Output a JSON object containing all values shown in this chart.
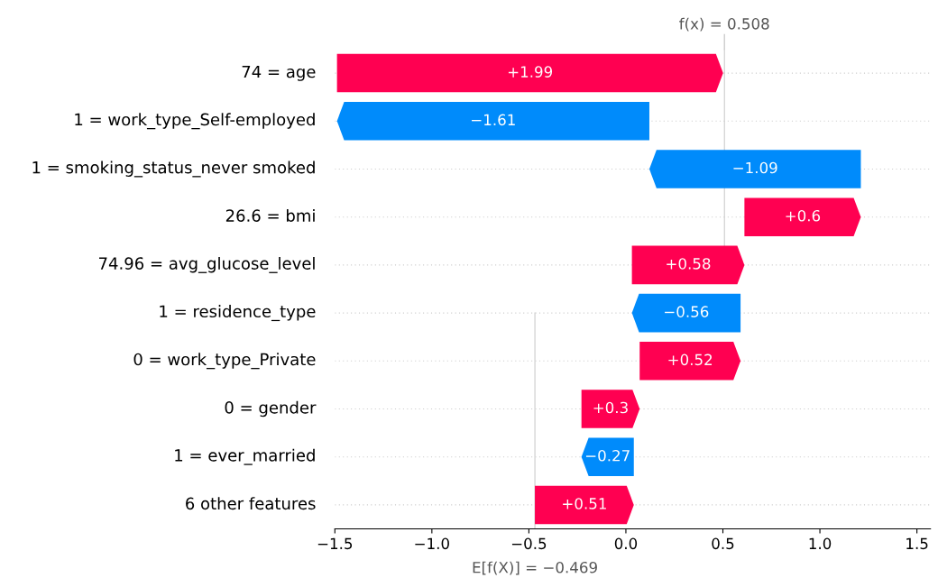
{
  "chart_data": {
    "type": "bar",
    "orientation": "horizontal",
    "categories": [
      "74 = age",
      "1 = work_type_Self-employed",
      "1 = smoking_status_never smoked",
      "26.6 = bmi",
      "74.96 = avg_glucose_level",
      "1 = residence_type",
      "0 = work_type_Private",
      "0 = gender",
      "1 = ever_married",
      "6 other features"
    ],
    "values": [
      1.99,
      -1.61,
      -1.09,
      0.6,
      0.58,
      -0.56,
      0.52,
      0.3,
      -0.27,
      0.51
    ],
    "base": [
      -1.489,
      0.121,
      1.211,
      0.611,
      0.031,
      0.591,
      0.071,
      -0.229,
      0.041,
      -0.469
    ],
    "colors": [
      "#ff0051",
      "#008bfb",
      "#008bfb",
      "#ff0051",
      "#ff0051",
      "#008bfb",
      "#ff0051",
      "#ff0051",
      "#008bfb",
      "#ff0051"
    ],
    "value_labels": [
      "+1.99",
      "−1.61",
      "−1.09",
      "+0.6",
      "+0.58",
      "−0.56",
      "+0.52",
      "+0.3",
      "−0.27",
      "+0.51"
    ],
    "xlim": [
      -1.5,
      1.57
    ],
    "xticks": [
      {
        "value": -1.5,
        "label": "−1.5"
      },
      {
        "value": -1.0,
        "label": "−1.0"
      },
      {
        "value": -0.5,
        "label": "−0.5"
      },
      {
        "value": 0.0,
        "label": "0.0"
      },
      0.5,
      {
        "value": 1.0,
        "label": "1.0"
      },
      1.5
    ],
    "ref_lines": [
      {
        "axis": "x",
        "value": 0.508,
        "label": "f(x) = 0.508",
        "color": "#cccccc"
      },
      {
        "axis": "x",
        "value": -0.469,
        "label": "E[f(X)] = −0.469",
        "color": "#cccccc"
      }
    ],
    "grid": "y"
  }
}
